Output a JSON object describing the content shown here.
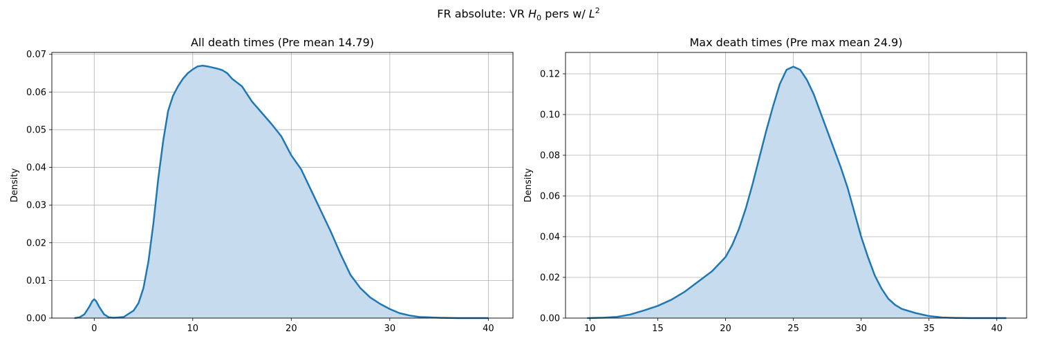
{
  "figure": {
    "suptitle_prefix": "FR absolute: VR ",
    "suptitle_var": "H",
    "suptitle_sub": "0",
    "suptitle_mid": " pers w/ ",
    "suptitle_var2": "L",
    "suptitle_sup": "2"
  },
  "chart_data": [
    {
      "type": "area",
      "title": "All death times (Pre mean 14.79)",
      "xlabel": "",
      "ylabel": "Density",
      "xlim": [
        -4.3,
        42.5
      ],
      "ylim": [
        0,
        0.0705
      ],
      "xticks": [
        0,
        10,
        20,
        30,
        40
      ],
      "yticks": [
        0.0,
        0.01,
        0.02,
        0.03,
        0.04,
        0.05,
        0.06,
        0.07
      ],
      "ytick_labels": [
        "0.00",
        "0.01",
        "0.02",
        "0.03",
        "0.04",
        "0.05",
        "0.06",
        "0.07"
      ],
      "grid": true,
      "line_color": "#1f77b4",
      "fill_color": "#c6dbed",
      "series": [
        {
          "x": [
            -2,
            -1.5,
            -1,
            -0.5,
            -0.2,
            0,
            0.2,
            0.5,
            1,
            1.5,
            2,
            3,
            4,
            4.5,
            5,
            5.5,
            6,
            6.5,
            7,
            7.5,
            8,
            8.5,
            9,
            9.5,
            10,
            10.5,
            11,
            11.5,
            12,
            12.5,
            13,
            13.5,
            14,
            14.5,
            15,
            16,
            17,
            18,
            19,
            20,
            21,
            22,
            23,
            24,
            25,
            26,
            27,
            28,
            29,
            30,
            31,
            32,
            33,
            34,
            35,
            36,
            37,
            38,
            39,
            40
          ],
          "y": [
            0.0,
            0.0002,
            0.001,
            0.003,
            0.0045,
            0.005,
            0.0045,
            0.003,
            0.001,
            0.0002,
            0.0001,
            0.0003,
            0.002,
            0.004,
            0.008,
            0.015,
            0.025,
            0.037,
            0.047,
            0.055,
            0.059,
            0.0615,
            0.0635,
            0.065,
            0.066,
            0.0668,
            0.067,
            0.0668,
            0.0665,
            0.0662,
            0.0658,
            0.065,
            0.0635,
            0.0625,
            0.0615,
            0.0575,
            0.0545,
            0.0515,
            0.0482,
            0.0432,
            0.0395,
            0.034,
            0.0285,
            0.023,
            0.017,
            0.0115,
            0.008,
            0.0055,
            0.0038,
            0.0024,
            0.0013,
            0.0007,
            0.0003,
            0.0002,
            0.0001,
            5e-05,
            0.0,
            0.0,
            0.0,
            0.0
          ]
        }
      ]
    },
    {
      "type": "area",
      "title": "Max death times (Pre max mean 24.9)",
      "xlabel": "",
      "ylabel": "Density",
      "xlim": [
        8.2,
        42.2
      ],
      "ylim": [
        0,
        0.1305
      ],
      "xticks": [
        10,
        15,
        20,
        25,
        30,
        35,
        40
      ],
      "yticks": [
        0.0,
        0.02,
        0.04,
        0.06,
        0.08,
        0.1,
        0.12
      ],
      "ytick_labels": [
        "0.00",
        "0.02",
        "0.04",
        "0.06",
        "0.08",
        "0.10",
        "0.12"
      ],
      "grid": true,
      "line_color": "#1f77b4",
      "fill_color": "#c6dbed",
      "series": [
        {
          "x": [
            9.8,
            11,
            12,
            13,
            14,
            15,
            16,
            17,
            18,
            19,
            20,
            20.5,
            21,
            21.5,
            22,
            22.5,
            23,
            23.5,
            24,
            24.5,
            25,
            25.5,
            26,
            26.5,
            27,
            27.5,
            28,
            28.5,
            29,
            29.5,
            30,
            30.5,
            31,
            31.5,
            32,
            32.5,
            33,
            34,
            35,
            36,
            37,
            38,
            40,
            40.7
          ],
          "y": [
            0.0,
            0.0002,
            0.0006,
            0.0018,
            0.0038,
            0.006,
            0.009,
            0.013,
            0.018,
            0.023,
            0.03,
            0.036,
            0.044,
            0.054,
            0.066,
            0.079,
            0.092,
            0.104,
            0.115,
            0.122,
            0.1235,
            0.122,
            0.117,
            0.11,
            0.101,
            0.092,
            0.083,
            0.074,
            0.064,
            0.052,
            0.04,
            0.03,
            0.021,
            0.0145,
            0.0095,
            0.0065,
            0.0045,
            0.0025,
            0.001,
            0.0003,
            0.0001,
            0.0,
            0.0,
            0.0
          ]
        }
      ]
    }
  ]
}
